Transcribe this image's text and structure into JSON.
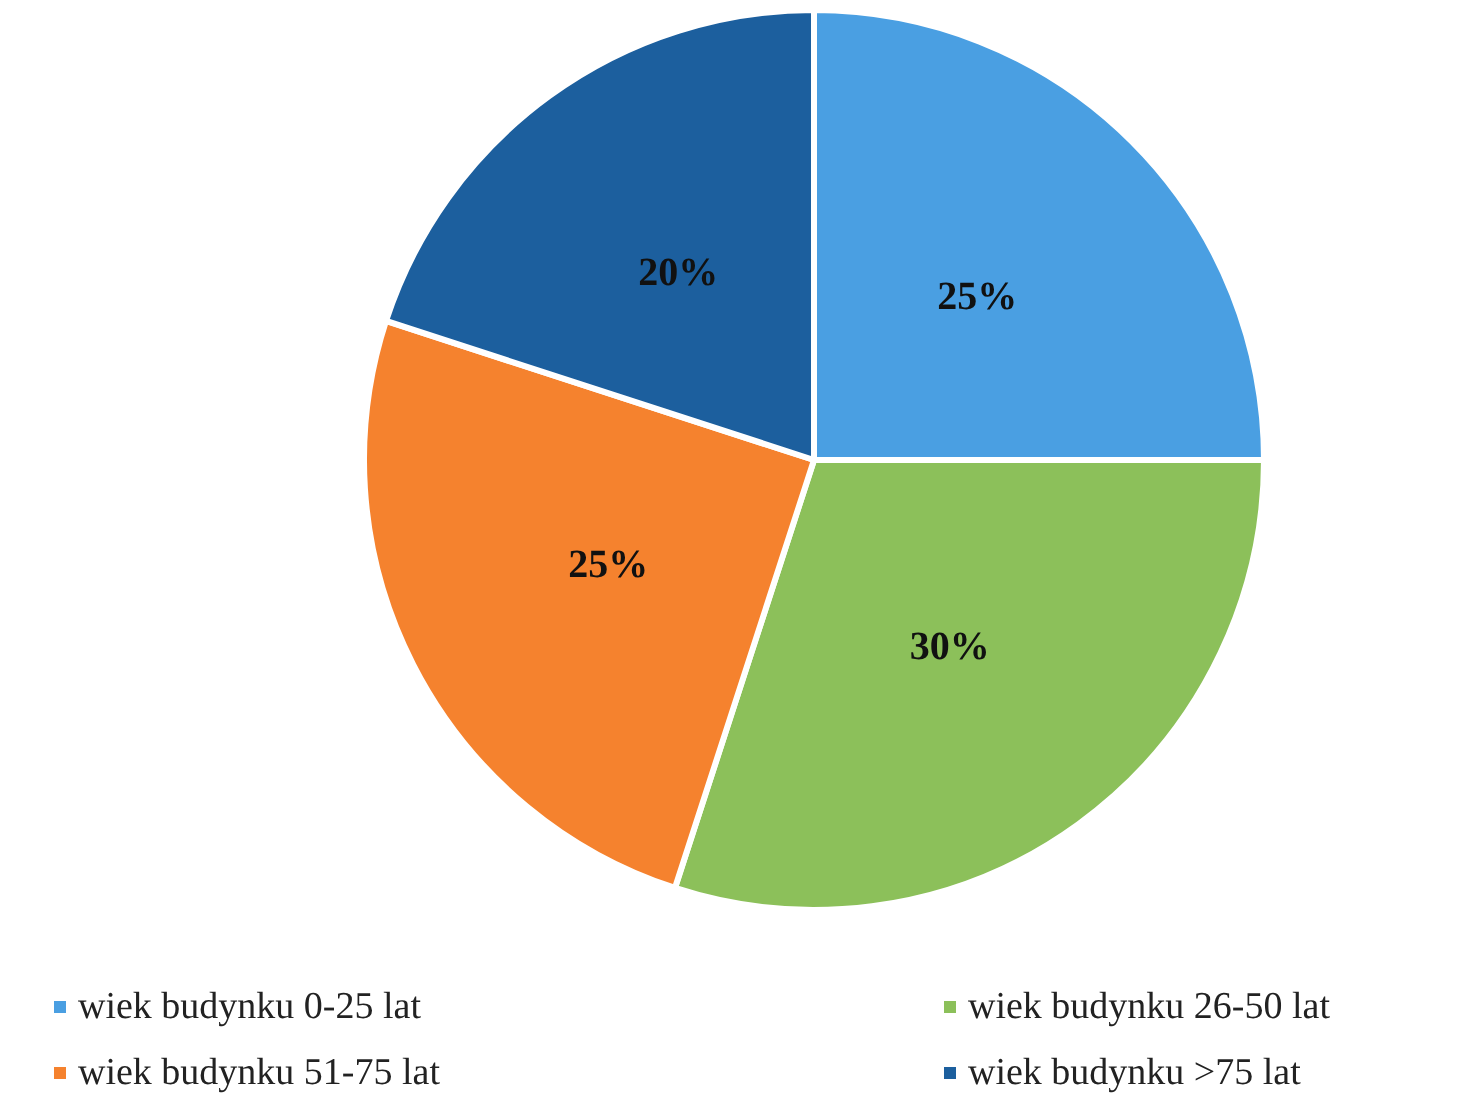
{
  "chart_data": {
    "type": "pie",
    "categories": [
      "wiek budynku 0-25 lat",
      "wiek budynku 26-50 lat",
      "wiek budynku 51-75 lat",
      "wiek budynku >75 lat"
    ],
    "values": [
      25,
      30,
      25,
      20
    ],
    "colors": [
      "#4a9fe2",
      "#8cc05a",
      "#f5822e",
      "#1c5f9e"
    ],
    "value_labels": [
      "25%",
      "30%",
      "25%",
      "20%"
    ],
    "legend": "bottom"
  }
}
